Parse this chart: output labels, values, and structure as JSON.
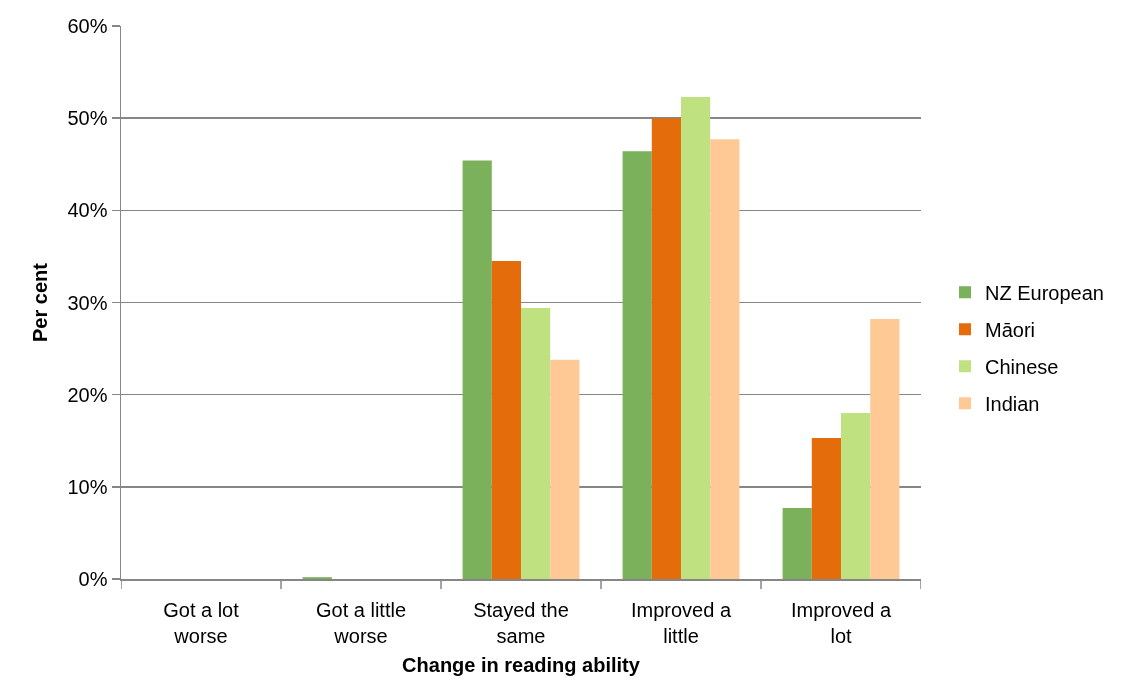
{
  "chart_data": {
    "type": "bar",
    "xlabel": "Change in reading ability",
    "ylabel": "Per cent",
    "categories": [
      "Got a lot\nworse",
      "Got a little\nworse",
      "Stayed the\nsame",
      "Improved a\nlittle",
      "Improved a\nlot"
    ],
    "series": [
      {
        "name": "NZ European",
        "color": "#7ab15a",
        "values": [
          0,
          0.2,
          45.4,
          46.4,
          7.7
        ]
      },
      {
        "name": "Māori",
        "color": "#e46c0a",
        "values": [
          0,
          0,
          34.5,
          50.0,
          15.3
        ]
      },
      {
        "name": "Chinese",
        "color": "#bfe17f",
        "values": [
          0,
          0,
          29.4,
          52.3,
          18.0
        ]
      },
      {
        "name": "Indian",
        "color": "#ffc996",
        "values": [
          0,
          0,
          23.8,
          47.7,
          28.2
        ]
      }
    ],
    "ylim": [
      0,
      60
    ],
    "yticks": [
      {
        "value": 0,
        "label": "0%"
      },
      {
        "value": 10,
        "label": "10%"
      },
      {
        "value": 20,
        "label": "20%"
      },
      {
        "value": 30,
        "label": "30%"
      },
      {
        "value": 40,
        "label": "40%"
      },
      {
        "value": 50,
        "label": "50%"
      },
      {
        "value": 60,
        "label": "60%"
      }
    ],
    "grid": "y",
    "legend": "right"
  }
}
